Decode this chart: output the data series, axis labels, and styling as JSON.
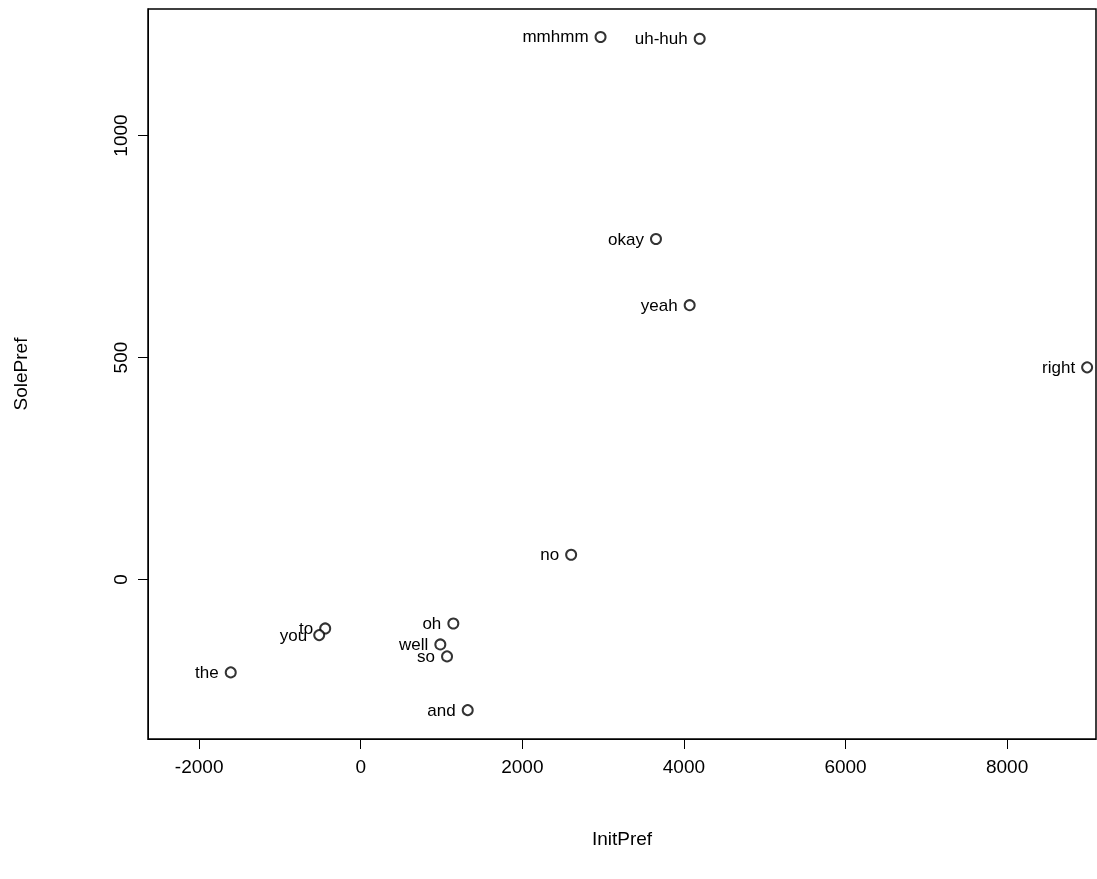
{
  "chart_data": {
    "type": "scatter",
    "xlabel": "InitPref",
    "ylabel": "SolePref",
    "x": [
      2968,
      4195,
      3654,
      4071,
      8990,
      2604,
      1146,
      985,
      1068,
      1324,
      -1609,
      -440,
      -514
    ],
    "values": [
      1222,
      1218,
      767,
      618,
      478,
      56,
      -99,
      -146,
      -173,
      -294,
      -209,
      -110,
      -125
    ],
    "color": "#000000",
    "marker": "circle",
    "grid": false,
    "xlim": [
      -2633,
      9100
    ],
    "xticks": [
      -2000,
      0,
      2000,
      4000,
      6000,
      8000
    ],
    "ylim": [
      -359,
      1285
    ],
    "yticks": [
      0,
      500,
      1000
    ],
    "annotations": [
      {
        "text": "mmhmm",
        "x": 2968,
        "y": 1222
      },
      {
        "text": "uh-huh",
        "x": 4195,
        "y": 1218
      },
      {
        "text": "okay",
        "x": 3654,
        "y": 767
      },
      {
        "text": "yeah",
        "x": 4071,
        "y": 618
      },
      {
        "text": "right",
        "x": 8990,
        "y": 478
      },
      {
        "text": "no",
        "x": 2604,
        "y": 56
      },
      {
        "text": "oh",
        "x": 1146,
        "y": -99
      },
      {
        "text": "well",
        "x": 985,
        "y": -146
      },
      {
        "text": "so",
        "x": 1068,
        "y": -173
      },
      {
        "text": "and",
        "x": 1324,
        "y": -294
      },
      {
        "text": "the",
        "x": -1609,
        "y": -209
      },
      {
        "text": "to",
        "x": -440,
        "y": -110
      },
      {
        "text": "you",
        "x": -514,
        "y": -125
      }
    ]
  }
}
